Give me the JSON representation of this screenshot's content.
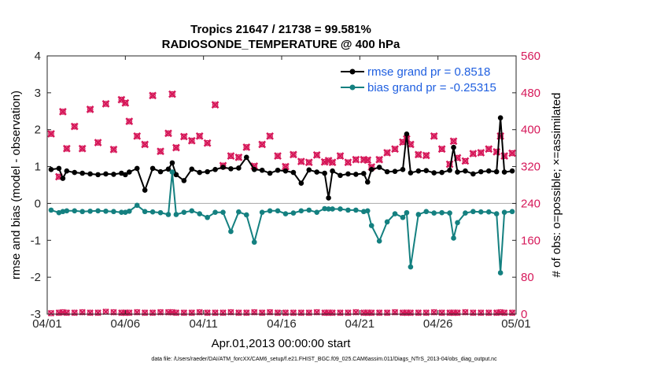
{
  "chart_data": {
    "type": "line",
    "title": "Tropics 21647 / 21738 = 99.581%",
    "subtitle": "RADIOSONDE_TEMPERATURE @ 400 hPa",
    "xlabel": "Apr.01,2013 00:00:00 start",
    "ylabel": "rmse and bias (model - observation)",
    "y2label": "# of obs: o=possible; ×=assimilated",
    "footnote": "data file: /Users/raeder/DAI/ATM_forcXX/CAM6_setup/f.e21.FHIST_BGC.f09_025.CAM6assim.011/Diags_NTrS_2013-04/obs_diag_output.nc",
    "xlim": [
      0,
      30
    ],
    "ylim": [
      -3,
      4
    ],
    "y2lim": [
      0,
      560
    ],
    "x_tick_values": [
      0,
      5,
      10,
      15,
      20,
      25,
      30
    ],
    "x_tick_labels": [
      "04/01",
      "04/06",
      "04/11",
      "04/16",
      "04/21",
      "04/26",
      "05/01"
    ],
    "y_ticks": [
      -3,
      -2,
      -1,
      0,
      1,
      2,
      3,
      4
    ],
    "y2_ticks": [
      0,
      80,
      160,
      240,
      320,
      400,
      480,
      560
    ],
    "legend": [
      "rmse grand pr = 0.8518",
      "bias grand pr = -0.25315"
    ],
    "legend_location": "top-right",
    "colors": {
      "rmse": "#000000",
      "bias": "#148080",
      "obs": "#d6195a",
      "legend_text": "#1f5fe0",
      "zero_line": "#aaaaaa"
    },
    "x": [
      0.25,
      0.75,
      1.0,
      1.25,
      1.75,
      2.25,
      2.75,
      3.25,
      3.75,
      4.25,
      4.75,
      5.0,
      5.25,
      5.75,
      6.25,
      6.75,
      7.25,
      7.75,
      8.0,
      8.25,
      8.75,
      9.25,
      9.75,
      10.25,
      10.75,
      11.25,
      11.75,
      12.25,
      12.75,
      13.25,
      13.75,
      14.25,
      14.75,
      15.25,
      15.75,
      16.25,
      16.75,
      17.25,
      17.75,
      18.0,
      18.25,
      18.75,
      19.25,
      19.75,
      20.25,
      20.5,
      20.75,
      21.25,
      21.75,
      22.25,
      22.75,
      23.0,
      23.25,
      23.75,
      24.25,
      24.75,
      25.25,
      25.75,
      26.0,
      26.25,
      26.75,
      27.25,
      27.75,
      28.25,
      28.75,
      29.0,
      29.25,
      29.75
    ],
    "series": [
      {
        "name": "rmse",
        "values": [
          0.92,
          0.95,
          0.68,
          0.88,
          0.84,
          0.82,
          0.8,
          0.78,
          0.8,
          0.79,
          0.82,
          0.78,
          0.85,
          0.95,
          0.36,
          0.95,
          0.86,
          0.93,
          1.1,
          0.78,
          0.62,
          0.93,
          0.84,
          0.86,
          0.92,
          0.98,
          0.94,
          0.96,
          1.25,
          0.92,
          0.9,
          0.82,
          0.9,
          0.88,
          0.84,
          0.55,
          0.91,
          0.85,
          0.82,
          0.15,
          0.88,
          0.76,
          0.8,
          0.79,
          0.81,
          0.58,
          0.92,
          0.98,
          0.86,
          0.87,
          0.92,
          1.88,
          0.83,
          0.88,
          0.89,
          0.83,
          0.84,
          0.9,
          1.52,
          0.85,
          0.88,
          0.8,
          0.86,
          0.88,
          0.86,
          2.32,
          0.85,
          0.88
        ]
      },
      {
        "name": "bias",
        "values": [
          -0.18,
          -0.25,
          -0.22,
          -0.2,
          -0.2,
          -0.22,
          -0.21,
          -0.2,
          -0.21,
          -0.22,
          -0.24,
          -0.24,
          -0.21,
          -0.05,
          -0.22,
          -0.23,
          -0.25,
          -0.3,
          0.85,
          -0.3,
          -0.24,
          -0.2,
          -0.28,
          -0.38,
          -0.24,
          -0.24,
          -0.76,
          -0.23,
          -0.31,
          -1.05,
          -0.24,
          -0.2,
          -0.2,
          -0.28,
          -0.26,
          -0.2,
          -0.18,
          -0.24,
          -0.14,
          -0.15,
          -0.15,
          -0.15,
          -0.18,
          -0.18,
          -0.22,
          -0.2,
          -0.6,
          -1.02,
          -0.5,
          -0.28,
          -0.38,
          -0.25,
          -1.72,
          -0.3,
          -0.22,
          -0.26,
          -0.25,
          -0.26,
          -0.94,
          -0.52,
          -0.26,
          -0.22,
          -0.23,
          -0.23,
          -0.28,
          -1.88,
          -0.24,
          -0.22
        ]
      },
      {
        "name": "assimilated",
        "values": [
          391,
          298,
          439,
          359,
          407,
          359,
          444,
          372,
          456,
          357,
          465,
          458,
          418,
          386,
          368,
          474,
          353,
          392,
          477,
          361,
          385,
          376,
          386,
          371,
          454,
          322,
          343,
          340,
          362,
          321,
          368,
          386,
          343,
          320,
          346,
          331,
          329,
          345,
          330,
          333,
          329,
          343,
          329,
          335,
          335,
          334,
          319,
          335,
          350,
          358,
          373,
          380,
          368,
          346,
          344,
          386,
          358,
          325,
          375,
          339,
          332,
          348,
          350,
          358,
          352,
          386,
          343,
          349
        ]
      },
      {
        "name": "possible",
        "values": [
          2,
          3,
          4,
          3,
          3,
          4,
          3,
          3,
          5,
          4,
          3,
          3,
          3,
          4,
          3,
          3,
          4,
          4,
          4,
          3,
          3,
          3,
          4,
          3,
          3,
          3,
          4,
          3,
          3,
          4,
          3,
          4,
          3,
          3,
          3,
          3,
          3,
          4,
          3,
          3,
          3,
          3,
          3,
          4,
          3,
          3,
          3,
          3,
          3,
          4,
          3,
          3,
          3,
          3,
          3,
          4,
          3,
          3,
          3,
          3,
          4,
          3,
          3,
          3,
          3,
          4,
          3,
          3
        ]
      }
    ]
  }
}
